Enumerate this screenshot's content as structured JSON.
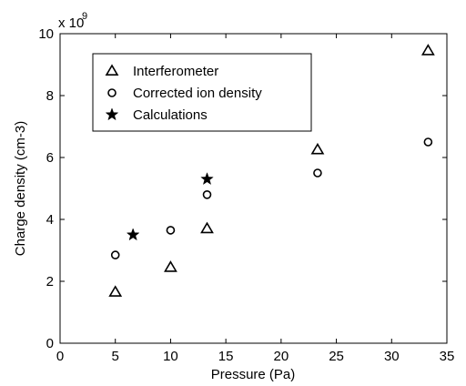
{
  "chart_data": {
    "type": "scatter",
    "xlabel": "Pressure (Pa)",
    "ylabel": "Charge density (cm-3)",
    "y_multiplier_base": "x 10",
    "y_multiplier_exponent": "9",
    "xlim": [
      0,
      35
    ],
    "ylim": [
      0,
      10
    ],
    "x_ticks": [
      "0",
      "5",
      "10",
      "15",
      "20",
      "25",
      "30",
      "35"
    ],
    "y_ticks": [
      "0",
      "2",
      "4",
      "6",
      "8",
      "10"
    ],
    "grid": false,
    "legend_position": "top-left",
    "series": [
      {
        "name": "Interferometer",
        "marker": "triangle",
        "points": [
          [
            5,
            1.65
          ],
          [
            10,
            2.45
          ],
          [
            13.3,
            3.7
          ],
          [
            23.3,
            6.25
          ],
          [
            33.3,
            9.45
          ]
        ]
      },
      {
        "name": "Corrected ion density",
        "marker": "circle",
        "points": [
          [
            5,
            2.85
          ],
          [
            10,
            3.65
          ],
          [
            13.3,
            4.8
          ],
          [
            23.3,
            5.5
          ],
          [
            33.3,
            6.5
          ]
        ]
      },
      {
        "name": "Calculations",
        "marker": "star",
        "points": [
          [
            6.6,
            3.5
          ],
          [
            13.3,
            5.3
          ]
        ]
      }
    ]
  }
}
